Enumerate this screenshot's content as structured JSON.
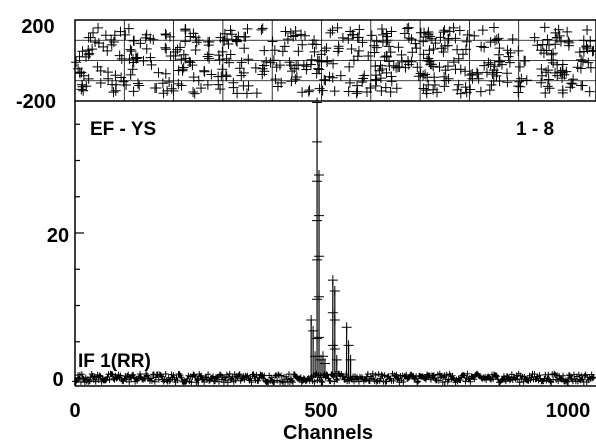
{
  "chart_data": [
    {
      "type": "scatter",
      "panel": "residuals",
      "xlim": [
        0,
        1000
      ],
      "ylim": [
        -200,
        200
      ],
      "yticks": [
        "200",
        "-200"
      ],
      "grid": true,
      "marker": "plus",
      "series": [
        {
          "noise_amplitude": 200
        }
      ]
    },
    {
      "type": "line",
      "panel": "spectrum",
      "marker": "plus",
      "xlabel": "Channels",
      "xlim": [
        0,
        1000
      ],
      "ylim": [
        -1,
        40
      ],
      "xticks": [
        "0",
        "500",
        "1000"
      ],
      "yticks": [
        "0",
        "20"
      ],
      "annotations": {
        "left_top": "EF - YS",
        "right_top": "1 - 8",
        "left_bottom": "IF 1(RR)"
      },
      "series": [
        {
          "baseline": 0,
          "noise_amplitude": 0.6,
          "peaks": [
            {
              "x": 479,
              "y": 8.0
            },
            {
              "x": 483,
              "y": 6.5
            },
            {
              "x": 487,
              "y": 3.0
            },
            {
              "x": 491,
              "y": 38.0
            },
            {
              "x": 495,
              "y": 28.0
            },
            {
              "x": 499,
              "y": 2.5
            },
            {
              "x": 503,
              "y": 3.0
            },
            {
              "x": 507,
              "y": 2.0
            },
            {
              "x": 523,
              "y": 13.5
            },
            {
              "x": 527,
              "y": 12.0
            },
            {
              "x": 531,
              "y": 2.5
            },
            {
              "x": 551,
              "y": 7.0
            },
            {
              "x": 555,
              "y": 4.5
            },
            {
              "x": 559,
              "y": 2.5
            }
          ]
        }
      ]
    }
  ]
}
